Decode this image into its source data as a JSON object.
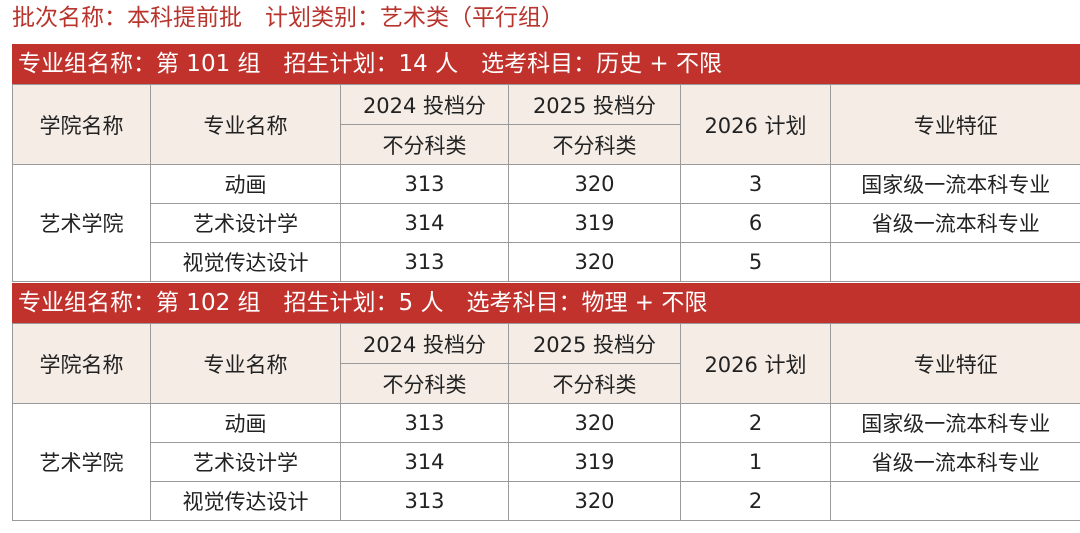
{
  "header": {
    "title": "批次名称：本科提前批　计划类别：艺术类（平行组）"
  },
  "columns": {
    "college": "学院名称",
    "major": "专业名称",
    "score_2024": "2024 投档分",
    "score_2025": "2025 投档分",
    "subtype": "不分科类",
    "plan_2026": "2026 计划",
    "feature": "专业特征"
  },
  "groups": [
    {
      "title": "专业组名称：第 101 组　招生计划：14 人　选考科目：历史 + 不限",
      "college": "艺术学院",
      "rows": [
        {
          "major": "动画",
          "score_2024": 313,
          "score_2025": 320,
          "plan_2026": 3,
          "feature": "国家级一流本科专业"
        },
        {
          "major": "艺术设计学",
          "score_2024": 314,
          "score_2025": 319,
          "plan_2026": 6,
          "feature": "省级一流本科专业"
        },
        {
          "major": "视觉传达设计",
          "score_2024": 313,
          "score_2025": 320,
          "plan_2026": 5
        }
      ]
    },
    {
      "title": "专业组名称：第 102 组　招生计划：5 人　选考科目：物理 + 不限",
      "college": "艺术学院",
      "rows": [
        {
          "major": "动画",
          "score_2024": 313,
          "score_2025": 320,
          "plan_2026": 2,
          "feature": "国家级一流本科专业"
        },
        {
          "major": "艺术设计学",
          "score_2024": 314,
          "score_2025": 319,
          "plan_2026": 1,
          "feature": "省级一流本科专业"
        },
        {
          "major": "视觉传达设计",
          "score_2024": 313,
          "score_2025": 320,
          "plan_2026": 2
        }
      ]
    }
  ]
}
